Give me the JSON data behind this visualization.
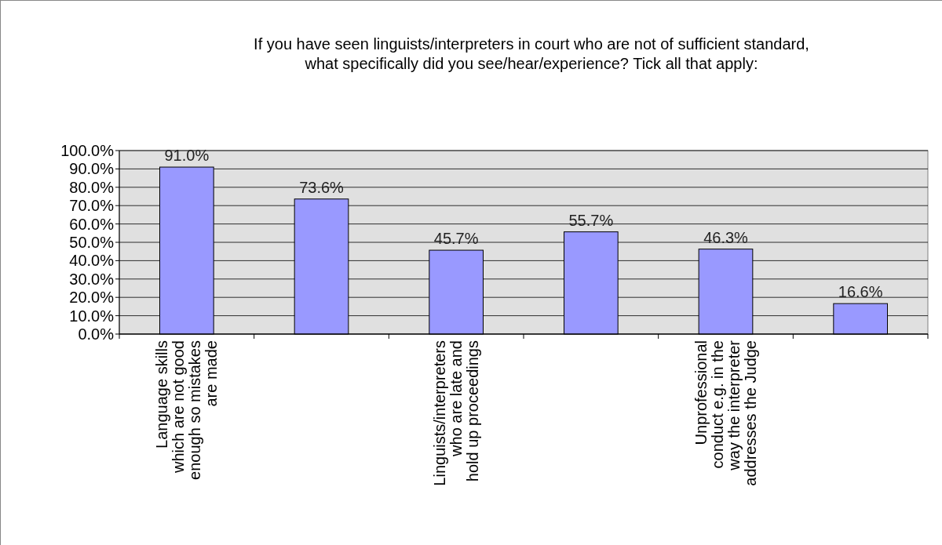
{
  "chart_data": {
    "type": "bar",
    "title": "If you have seen linguists/interpreters in court who are not of sufficient standard, what specifically did you see/hear/experience? Tick all that apply:",
    "categories": [
      "Language skills which are not good enough so mistakes are made",
      null,
      "Linguists/interpreters who are late and hold up proceedings",
      null,
      "Unprofessional conduct e.g. in the way the interpreter addresses the Judge",
      null
    ],
    "values": [
      91.0,
      73.6,
      45.7,
      55.7,
      46.3,
      16.6
    ],
    "value_labels": [
      "91.0%",
      "73.6%",
      "45.7%",
      "55.7%",
      "46.3%",
      "16.6%"
    ],
    "color": "#9999ff",
    "ylim": [
      0,
      100
    ],
    "yticks": [
      {
        "value": 0,
        "label": "0.0%"
      },
      {
        "value": 10,
        "label": "10.0%"
      },
      {
        "value": 20,
        "label": "20.0%"
      },
      {
        "value": 30,
        "label": "30.0%"
      },
      {
        "value": 40,
        "label": "40.0%"
      },
      {
        "value": 50,
        "label": "50.0%"
      },
      {
        "value": 60,
        "label": "60.0%"
      },
      {
        "value": 70,
        "label": "70.0%"
      },
      {
        "value": 80,
        "label": "80.0%"
      },
      {
        "value": 90,
        "label": "90.0%"
      },
      {
        "value": 100,
        "label": "100.0%"
      }
    ],
    "grid": "y"
  }
}
